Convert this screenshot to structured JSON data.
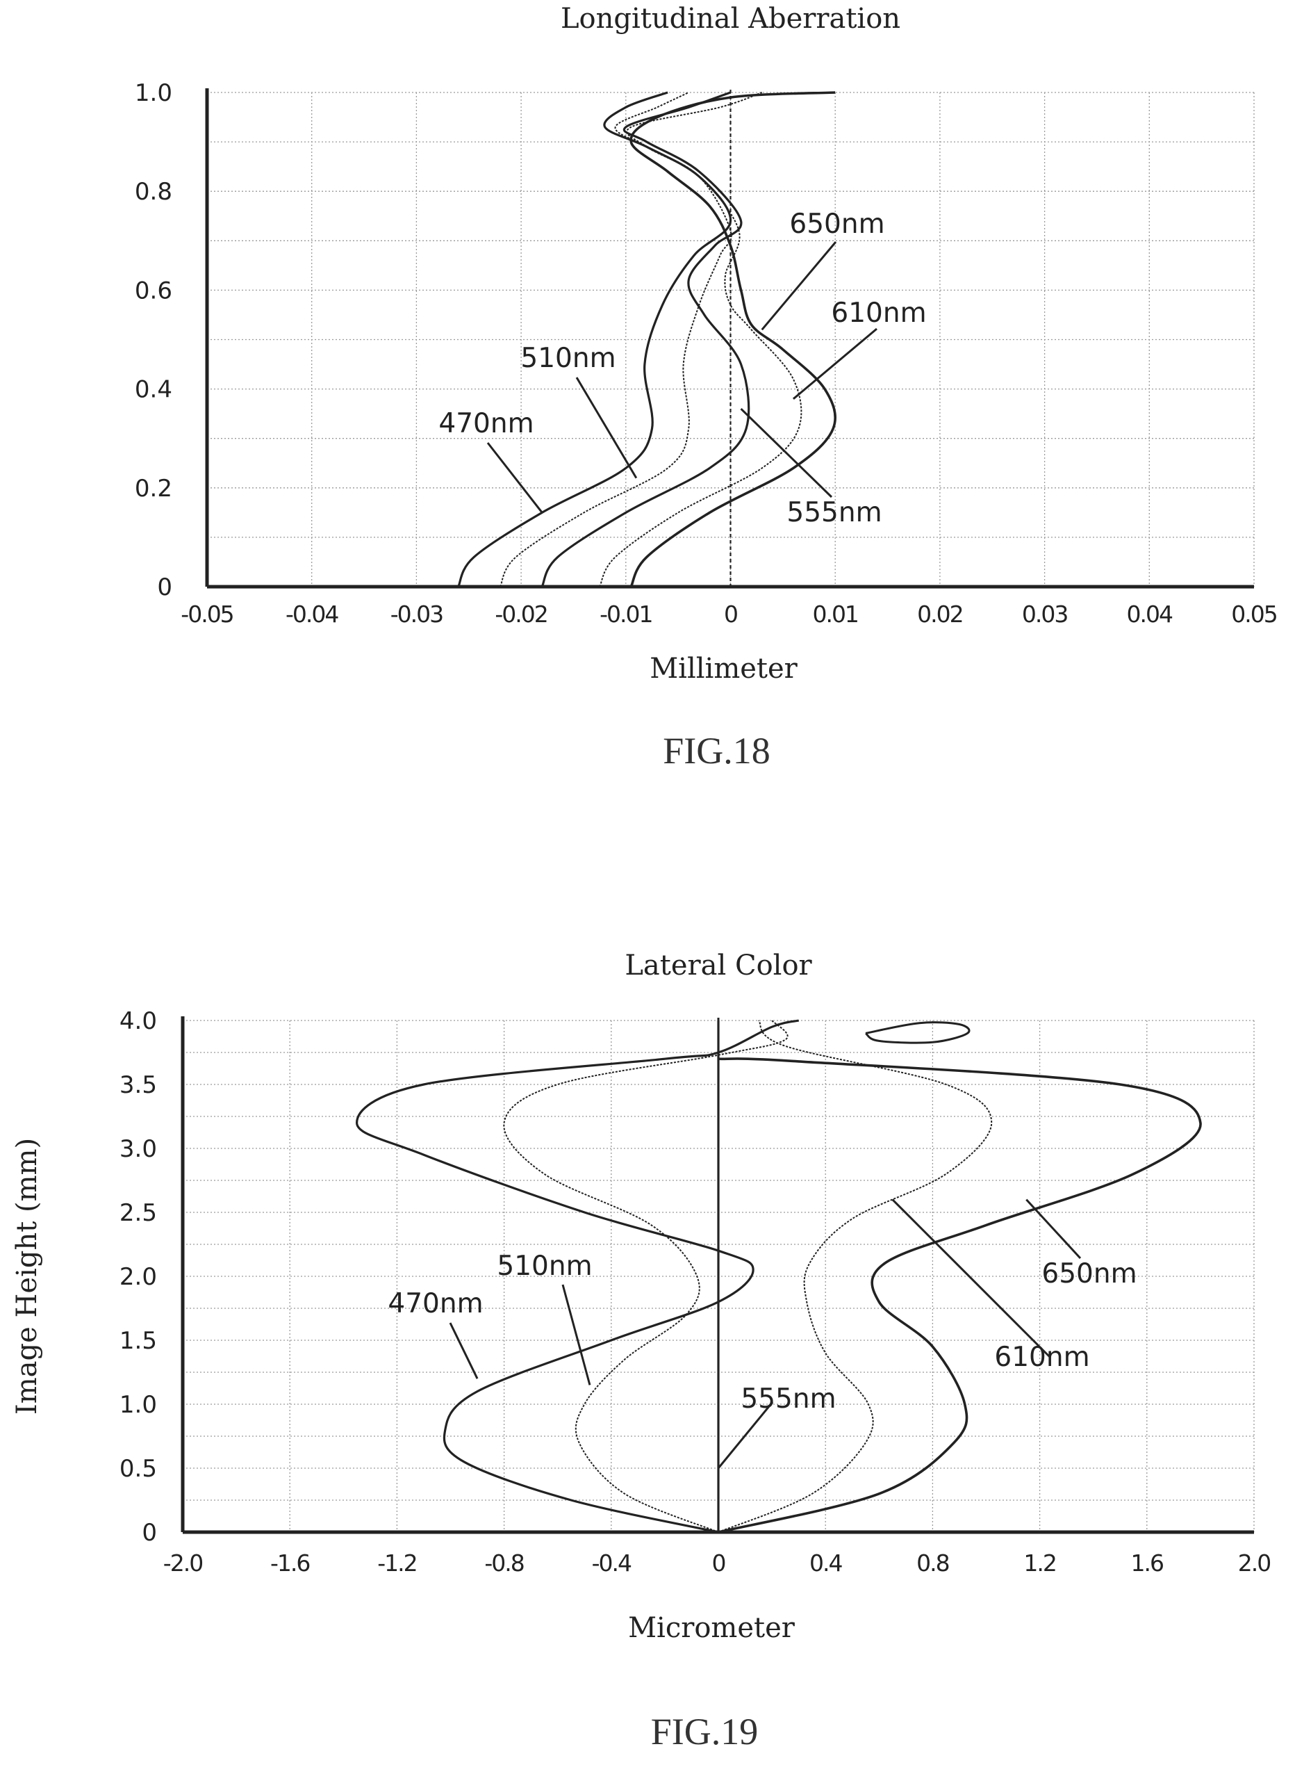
{
  "chart_data": [
    {
      "type": "line",
      "title": "Longitudinal Aberration",
      "xlabel": "Millimeter",
      "ylabel": "",
      "figure_label": "FIG.18",
      "xlim": [
        -0.05,
        0.05
      ],
      "ylim": [
        0,
        1.0
      ],
      "xticks": [
        "-0.05",
        "-0.04",
        "-0.03",
        "-0.02",
        "-0.01",
        "0",
        "0.01",
        "0.02",
        "0.03",
        "0.04",
        "0.05"
      ],
      "yticks": [
        "0",
        "0.2",
        "0.4",
        "0.6",
        "0.8",
        "1.0"
      ],
      "grid": true,
      "series": [
        {
          "name": "470nm",
          "points": [
            [
              -0.026,
              0.0
            ],
            [
              -0.0245,
              0.06
            ],
            [
              -0.018,
              0.15
            ],
            [
              -0.01,
              0.24
            ],
            [
              -0.0075,
              0.32
            ],
            [
              -0.0082,
              0.45
            ],
            [
              -0.0065,
              0.57
            ],
            [
              -0.0035,
              0.67
            ],
            [
              0.0,
              0.74
            ],
            [
              -0.003,
              0.83
            ],
            [
              -0.008,
              0.89
            ],
            [
              -0.012,
              0.93
            ],
            [
              -0.01,
              0.97
            ],
            [
              -0.006,
              1.0
            ]
          ]
        },
        {
          "name": "510nm",
          "points": [
            [
              -0.022,
              0.0
            ],
            [
              -0.0205,
              0.06
            ],
            [
              -0.014,
              0.15
            ],
            [
              -0.006,
              0.24
            ],
            [
              -0.004,
              0.32
            ],
            [
              -0.0045,
              0.45
            ],
            [
              -0.003,
              0.57
            ],
            [
              -0.001,
              0.67
            ],
            [
              0.0,
              0.72
            ],
            [
              -0.003,
              0.83
            ],
            [
              -0.008,
              0.89
            ],
            [
              -0.011,
              0.93
            ],
            [
              -0.007,
              0.97
            ],
            [
              -0.004,
              1.0
            ]
          ]
        },
        {
          "name": "555nm",
          "points": [
            [
              -0.018,
              0.0
            ],
            [
              -0.0165,
              0.06
            ],
            [
              -0.01,
              0.15
            ],
            [
              -0.002,
              0.24
            ],
            [
              0.0015,
              0.32
            ],
            [
              0.001,
              0.45
            ],
            [
              -0.0025,
              0.55
            ],
            [
              -0.004,
              0.62
            ],
            [
              -0.0015,
              0.69
            ],
            [
              0.001,
              0.74
            ],
            [
              -0.003,
              0.84
            ],
            [
              -0.008,
              0.9
            ],
            [
              -0.01,
              0.93
            ],
            [
              -0.004,
              0.97
            ],
            [
              0.0,
              1.0
            ]
          ]
        },
        {
          "name": "610nm",
          "points": [
            [
              -0.0125,
              0.0
            ],
            [
              -0.011,
              0.06
            ],
            [
              -0.005,
              0.15
            ],
            [
              0.003,
              0.24
            ],
            [
              0.0065,
              0.32
            ],
            [
              0.006,
              0.42
            ],
            [
              0.002,
              0.52
            ],
            [
              0.0,
              0.57
            ],
            [
              -0.0005,
              0.63
            ],
            [
              0.0008,
              0.72
            ],
            [
              -0.003,
              0.83
            ],
            [
              -0.008,
              0.89
            ],
            [
              -0.0095,
              0.93
            ],
            [
              -0.001,
              0.97
            ],
            [
              0.003,
              1.0
            ]
          ]
        },
        {
          "name": "650nm",
          "points": [
            [
              -0.0095,
              0.0
            ],
            [
              -0.008,
              0.06
            ],
            [
              -0.002,
              0.15
            ],
            [
              0.006,
              0.24
            ],
            [
              0.0098,
              0.32
            ],
            [
              0.009,
              0.4
            ],
            [
              0.005,
              0.48
            ],
            [
              0.002,
              0.53
            ],
            [
              0.001,
              0.6
            ],
            [
              0.0,
              0.69
            ],
            [
              -0.002,
              0.77
            ],
            [
              -0.006,
              0.84
            ],
            [
              -0.0095,
              0.9
            ],
            [
              -0.007,
              0.95
            ],
            [
              0.0,
              0.99
            ],
            [
              0.01,
              1.0
            ]
          ]
        }
      ],
      "annotations": [
        {
          "text": "650nm",
          "points_to": [
            0.003,
            0.52
          ]
        },
        {
          "text": "610nm",
          "points_to": [
            0.006,
            0.38
          ]
        },
        {
          "text": "510nm",
          "points_to": [
            -0.009,
            0.22
          ]
        },
        {
          "text": "470nm",
          "points_to": [
            -0.018,
            0.15
          ]
        },
        {
          "text": "555nm",
          "points_to": [
            0.001,
            0.36
          ]
        }
      ]
    },
    {
      "type": "line",
      "title": "Lateral Color",
      "xlabel": "Micrometer",
      "ylabel": "Image Height (mm)",
      "figure_label": "FIG.19",
      "xlim": [
        -2.0,
        2.0
      ],
      "ylim": [
        0,
        4.0
      ],
      "xticks": [
        "-2.0",
        "-1.6",
        "-1.2",
        "-0.8",
        "-0.4",
        "0",
        "0.4",
        "0.8",
        "1.2",
        "1.6",
        "2.0"
      ],
      "yticks": [
        "0",
        "0.5",
        "1.0",
        "1.5",
        "2.0",
        "2.5",
        "3.0",
        "3.5",
        "4.0"
      ],
      "grid": true,
      "series": [
        {
          "name": "470nm",
          "points": [
            [
              0.0,
              0.0
            ],
            [
              -0.55,
              0.25
            ],
            [
              -0.95,
              0.55
            ],
            [
              -1.02,
              0.8
            ],
            [
              -0.9,
              1.1
            ],
            [
              -0.4,
              1.5
            ],
            [
              0.0,
              1.8
            ],
            [
              0.13,
              2.05
            ],
            [
              0.0,
              2.2
            ],
            [
              -0.5,
              2.5
            ],
            [
              -1.1,
              2.95
            ],
            [
              -1.35,
              3.2
            ],
            [
              -1.1,
              3.5
            ],
            [
              -0.2,
              3.7
            ],
            [
              0.0,
              3.75
            ],
            [
              0.2,
              3.95
            ],
            [
              0.3,
              4.0
            ]
          ]
        },
        {
          "name": "510nm",
          "points": [
            [
              0.0,
              0.0
            ],
            [
              -0.35,
              0.3
            ],
            [
              -0.52,
              0.7
            ],
            [
              -0.5,
              1.0
            ],
            [
              -0.35,
              1.35
            ],
            [
              -0.12,
              1.7
            ],
            [
              -0.08,
              2.0
            ],
            [
              -0.25,
              2.4
            ],
            [
              -0.65,
              2.8
            ],
            [
              -0.8,
              3.2
            ],
            [
              -0.6,
              3.5
            ],
            [
              0.0,
              3.73
            ],
            [
              0.25,
              3.85
            ],
            [
              0.2,
              4.0
            ]
          ]
        },
        {
          "name": "555nm",
          "points": [
            [
              0.0,
              0.0
            ],
            [
              0.0,
              4.0
            ]
          ]
        },
        {
          "name": "610nm",
          "points": [
            [
              0.0,
              0.0
            ],
            [
              0.35,
              0.3
            ],
            [
              0.55,
              0.7
            ],
            [
              0.56,
              1.0
            ],
            [
              0.4,
              1.4
            ],
            [
              0.33,
              1.8
            ],
            [
              0.34,
              2.1
            ],
            [
              0.5,
              2.45
            ],
            [
              0.85,
              2.8
            ],
            [
              1.02,
              3.2
            ],
            [
              0.85,
              3.5
            ],
            [
              0.25,
              3.8
            ],
            [
              0.15,
              4.0
            ]
          ]
        },
        {
          "name": "650nm",
          "points": [
            [
              0.0,
              0.0
            ],
            [
              0.6,
              0.3
            ],
            [
              0.88,
              0.7
            ],
            [
              0.92,
              1.0
            ],
            [
              0.8,
              1.45
            ],
            [
              0.6,
              1.8
            ],
            [
              0.62,
              2.1
            ],
            [
              1.0,
              2.4
            ],
            [
              1.55,
              2.8
            ],
            [
              1.8,
              3.2
            ],
            [
              1.5,
              3.5
            ],
            [
              0.3,
              3.68
            ],
            [
              0.0,
              3.7
            ]
          ]
        },
        {
          "name": "",
          "points": [
            [
              0.55,
              3.9
            ],
            [
              0.75,
              3.98
            ],
            [
              0.9,
              3.97
            ],
            [
              0.93,
              3.9
            ],
            [
              0.8,
              3.83
            ],
            [
              0.6,
              3.84
            ],
            [
              0.55,
              3.9
            ]
          ]
        }
      ],
      "annotations": [
        {
          "text": "510nm",
          "points_to": [
            -0.48,
            1.15
          ]
        },
        {
          "text": "470nm",
          "points_to": [
            -0.9,
            1.2
          ]
        },
        {
          "text": "555nm",
          "points_to": [
            0.0,
            0.5
          ]
        },
        {
          "text": "610nm",
          "points_to": [
            0.65,
            2.6
          ]
        },
        {
          "text": "650nm",
          "points_to": [
            1.15,
            2.6
          ]
        }
      ]
    }
  ]
}
